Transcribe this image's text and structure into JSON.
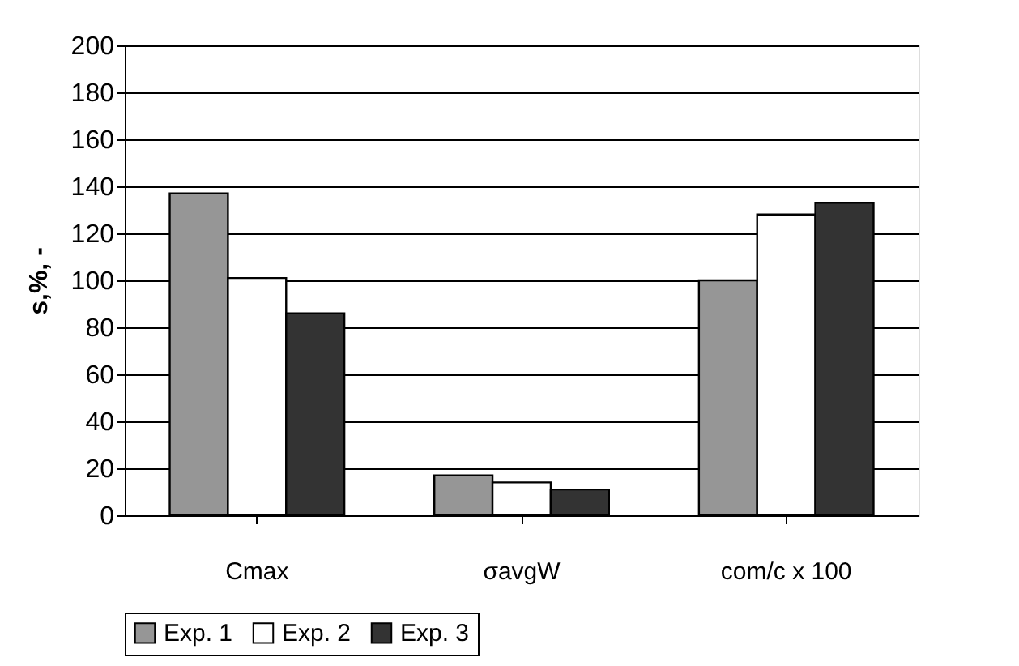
{
  "chart_data": {
    "type": "bar",
    "ylabel": "s,%, -",
    "categories": [
      "Cmax",
      "σavgW",
      "com/c x 100"
    ],
    "series": [
      {
        "name": "Exp. 1",
        "color": "#969696",
        "values": [
          137,
          17,
          100
        ]
      },
      {
        "name": "Exp. 2",
        "color": "#ffffff",
        "values": [
          101,
          14,
          128
        ]
      },
      {
        "name": "Exp. 3",
        "color": "#333333",
        "values": [
          86,
          11,
          133
        ]
      }
    ],
    "ylim": [
      0,
      200
    ],
    "yticks": [
      0,
      20,
      40,
      60,
      80,
      100,
      120,
      140,
      160,
      180,
      200
    ],
    "grid": "y",
    "legend": "bottom"
  }
}
